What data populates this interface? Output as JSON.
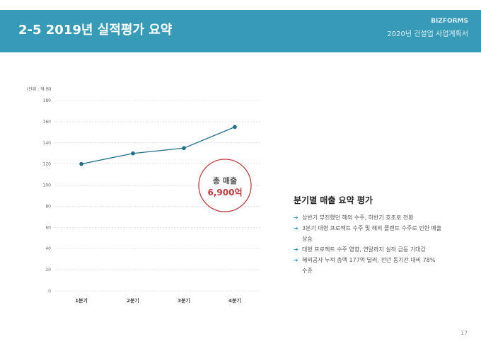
{
  "header": {
    "title": "2-5 2019년 실적평가 요약",
    "brand": "BIZFORMS",
    "subtitle": "2020년 건설업 사업계획서"
  },
  "chart_data": {
    "type": "line",
    "unit_label": "(단위 : 억 원)",
    "categories": [
      "1분기",
      "2분기",
      "3분기",
      "4분기"
    ],
    "values": [
      120,
      130,
      135,
      155
    ],
    "ylim": [
      0,
      180
    ],
    "yticks": [
      0,
      20,
      40,
      60,
      80,
      100,
      120,
      140,
      160,
      180
    ],
    "grid": true,
    "line_color": "#1f6f86",
    "annotation": {
      "label": "총 매출",
      "value": "6,900억",
      "color": "#c0393f"
    }
  },
  "summary": {
    "title": "분기별 매출 요약 평가",
    "items": [
      "상반기 부진했던 해외 수주, 하반기 호조로 전환",
      "3분기 대형 프로젝트 수주 및 해외 플랜트 수주로 인한 매출 상승",
      "대형 프로젝트 수주 영향, 연말까지 실적 급등 기대감",
      "해외공사 누적 총액 177억 달러, 전년 동기간 대비 78% 수준"
    ],
    "arrow": "➔"
  },
  "page_number": "17"
}
